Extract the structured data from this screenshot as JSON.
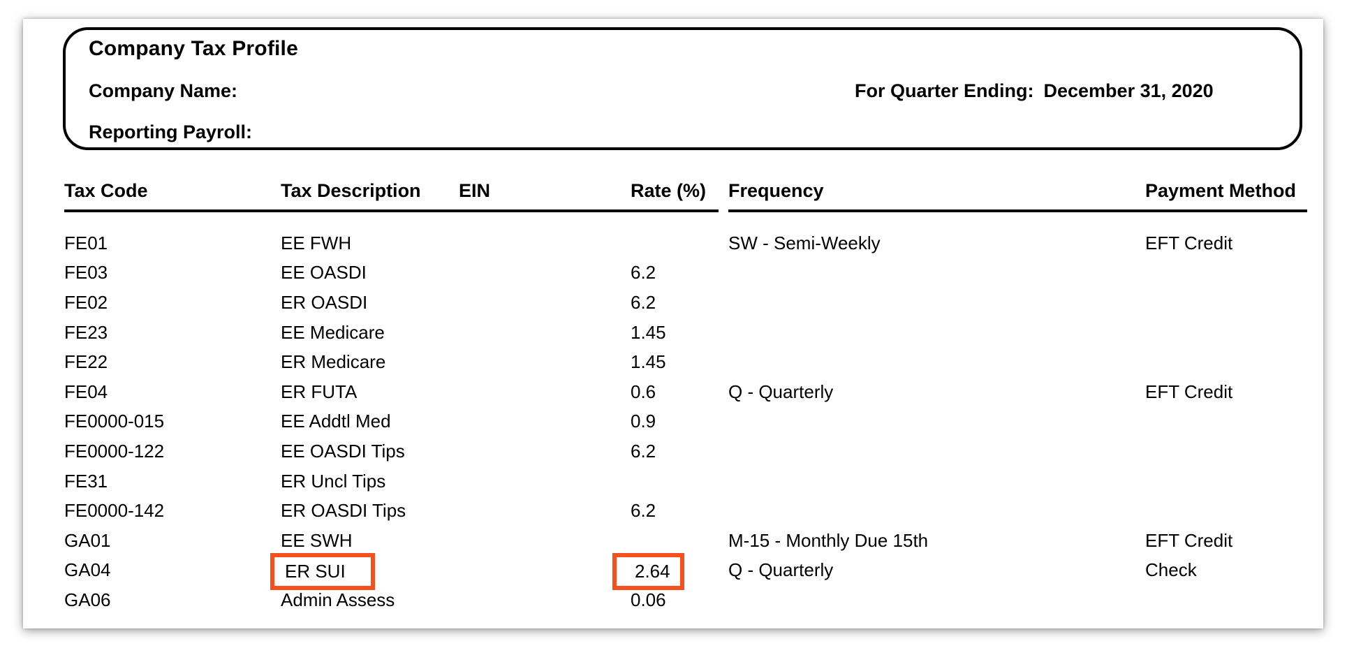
{
  "page": {
    "header": {
      "title": "Company Tax Profile",
      "company_name_label": "Company Name:",
      "quarter_label": "For Quarter Ending:",
      "quarter_value": "December 31, 2020",
      "reporting_payroll_label": "Reporting Payroll:"
    },
    "table": {
      "columns": [
        "Tax Code",
        "Tax Description",
        "EIN",
        "Rate (%)",
        "Frequency",
        "Payment Method"
      ],
      "highlight_color": "#F4511E",
      "rows": [
        {
          "tax_code": "FE01",
          "tax_description": "EE FWH",
          "ein": "",
          "rate": "",
          "frequency": "SW - Semi-Weekly",
          "payment_method": "EFT Credit"
        },
        {
          "tax_code": "FE03",
          "tax_description": "EE OASDI",
          "ein": "",
          "rate": "6.2",
          "frequency": "",
          "payment_method": ""
        },
        {
          "tax_code": "FE02",
          "tax_description": "ER OASDI",
          "ein": "",
          "rate": "6.2",
          "frequency": "",
          "payment_method": ""
        },
        {
          "tax_code": "FE23",
          "tax_description": "EE Medicare",
          "ein": "",
          "rate": "1.45",
          "frequency": "",
          "payment_method": ""
        },
        {
          "tax_code": "FE22",
          "tax_description": "ER Medicare",
          "ein": "",
          "rate": "1.45",
          "frequency": "",
          "payment_method": ""
        },
        {
          "tax_code": "FE04",
          "tax_description": "ER FUTA",
          "ein": "",
          "rate": "0.6",
          "frequency": "Q - Quarterly",
          "payment_method": "EFT Credit"
        },
        {
          "tax_code": "FE0000-015",
          "tax_description": "EE Addtl Med",
          "ein": "",
          "rate": "0.9",
          "frequency": "",
          "payment_method": ""
        },
        {
          "tax_code": "FE0000-122",
          "tax_description": "EE OASDI Tips",
          "ein": "",
          "rate": "6.2",
          "frequency": "",
          "payment_method": ""
        },
        {
          "tax_code": "FE31",
          "tax_description": "ER Uncl Tips",
          "ein": "",
          "rate": "",
          "frequency": "",
          "payment_method": ""
        },
        {
          "tax_code": "FE0000-142",
          "tax_description": "ER OASDI Tips",
          "ein": "",
          "rate": "6.2",
          "frequency": "",
          "payment_method": ""
        },
        {
          "tax_code": "GA01",
          "tax_description": "EE SWH",
          "ein": "",
          "rate": "",
          "frequency": "M-15 - Monthly Due 15th",
          "payment_method": "EFT Credit"
        },
        {
          "tax_code": "GA04",
          "tax_description": "ER SUI",
          "ein": "",
          "rate": "2.64",
          "frequency": "Q - Quarterly",
          "payment_method": "Check",
          "highlight_description": true,
          "highlight_rate": true
        },
        {
          "tax_code": "GA06",
          "tax_description": "Admin Assess",
          "ein": "",
          "rate": "0.06",
          "frequency": "",
          "payment_method": ""
        }
      ]
    }
  }
}
